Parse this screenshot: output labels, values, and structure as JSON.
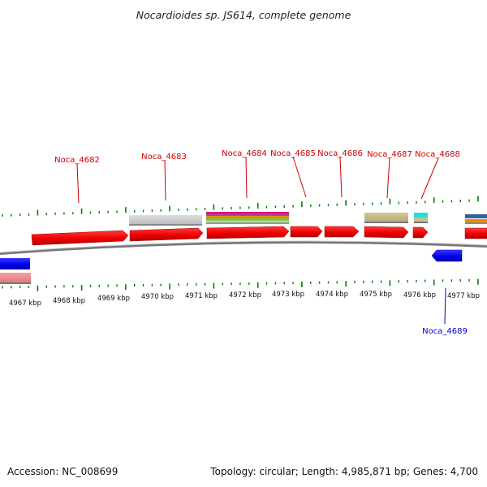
{
  "title": "Nocardioides sp. JS614, complete genome",
  "footer": {
    "accession": "Accession: NC_008699",
    "summary": "Topology: circular; Length: 4,985,871 bp; Genes: 4,700"
  },
  "colors": {
    "forward_gene": "#ff0000",
    "reverse_gene": "#0000ff",
    "forward_label": "#cc0000",
    "reverse_label": "#0000cc",
    "tick": "#008000",
    "backbone": "#888888"
  },
  "kbp_labels": [
    "4967 kbp",
    "4968 kbp",
    "4969 kbp",
    "4970 kbp",
    "4971 kbp",
    "4972 kbp",
    "4973 kbp",
    "4974 kbp",
    "4975 kbp",
    "4976 kbp",
    "4977 kbp"
  ],
  "gene_labels": {
    "forward": [
      "Noca_4682",
      "Noca_4683",
      "Noca_4684",
      "Noca_4685",
      "Noca_4686",
      "Noca_4687",
      "Noca_4688"
    ],
    "reverse": [
      "Noca_4689"
    ]
  }
}
